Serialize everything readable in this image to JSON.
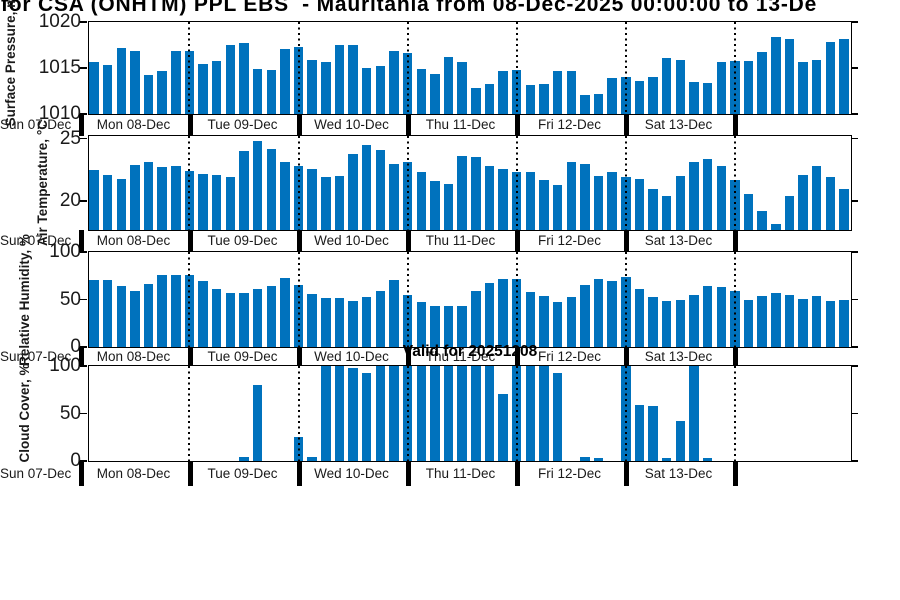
{
  "title": "for CSA (ONHTM) PPL EBS  - Mauritania from 08-Dec-2025 00:00:00 to 13-De",
  "annotation": "Valid for 20251208",
  "x_axis": {
    "left_label": "Sun 07-Dec",
    "day_labels": [
      "Mon 08-Dec",
      "Tue 09-Dec",
      "Wed 10-Dec",
      "Thu 11-Dec",
      "Fri 12-Dec",
      "Sat 13-Dec"
    ]
  },
  "colors": {
    "bar": "#0072BD",
    "axis": "#000000",
    "text": "#1a1a1a"
  },
  "chart_data": [
    {
      "type": "bar",
      "ylabel": "Surface Pressure, mb",
      "ylim": [
        1010,
        1020
      ],
      "yticks": [
        1010,
        1015,
        1020
      ],
      "x_start": "08-Dec 03:00",
      "x_step_hours": 3,
      "values": [
        1015.6,
        1015.3,
        1017.2,
        1016.8,
        1014.2,
        1014.7,
        1016.8,
        1016.9,
        1015.4,
        1015.8,
        1017.5,
        1017.7,
        1014.9,
        1014.8,
        1017.1,
        1017.3,
        1015.9,
        1015.7,
        1017.5,
        1017.5,
        1015.0,
        1015.2,
        1016.9,
        1016.6,
        1014.9,
        1014.3,
        1016.2,
        1015.6,
        1012.8,
        1013.3,
        1014.7,
        1014.8,
        1013.2,
        1013.3,
        1014.7,
        1014.7,
        1012.1,
        1012.2,
        1013.9,
        1014.0,
        1013.6,
        1014.0,
        1016.1,
        1015.9,
        1013.5,
        1013.4,
        1015.7,
        1015.8,
        1015.8,
        1016.7,
        1018.4,
        1018.2,
        1015.7,
        1015.9,
        1017.8,
        1018.1
      ]
    },
    {
      "type": "bar",
      "ylabel": "Air Temperature, °C",
      "ylim": [
        17.7,
        25.2
      ],
      "yticks": [
        20,
        25
      ],
      "x_start": "08-Dec 03:00",
      "x_step_hours": 3,
      "values": [
        22.5,
        22.1,
        21.8,
        22.9,
        23.1,
        22.7,
        22.8,
        22.4,
        22.2,
        22.1,
        21.9,
        24.0,
        24.8,
        24.2,
        23.1,
        22.8,
        22.6,
        21.9,
        22.0,
        23.8,
        24.5,
        24.1,
        23.0,
        23.1,
        22.3,
        21.6,
        21.4,
        23.6,
        23.5,
        22.8,
        22.6,
        22.3,
        22.3,
        21.7,
        21.3,
        23.1,
        23.0,
        22.0,
        22.3,
        21.9,
        21.8,
        21.0,
        20.4,
        22.0,
        23.1,
        23.4,
        22.8,
        21.7,
        20.6,
        19.2,
        18.2,
        20.4,
        22.1,
        22.8,
        21.9,
        21.0
      ]
    },
    {
      "type": "bar",
      "ylabel": "Relative Humidity, %",
      "ylim": [
        0,
        100
      ],
      "yticks": [
        0,
        50,
        100
      ],
      "x_start": "08-Dec 03:00",
      "x_step_hours": 3,
      "values": [
        71,
        71,
        64,
        59,
        66,
        76,
        76,
        76,
        70,
        61,
        57,
        57,
        61,
        64,
        73,
        65,
        56,
        52,
        52,
        48,
        53,
        59,
        71,
        55,
        47,
        43,
        43,
        43,
        59,
        67,
        72,
        72,
        58,
        54,
        47,
        53,
        65,
        72,
        70,
        74,
        61,
        53,
        48,
        50,
        55,
        64,
        63,
        59,
        49,
        54,
        57,
        55,
        51,
        54,
        48,
        50
      ]
    },
    {
      "type": "bar",
      "ylabel": "Cloud Cover, %",
      "ylim": [
        0,
        100
      ],
      "yticks": [
        0,
        50,
        100
      ],
      "x_start": "08-Dec 03:00",
      "x_step_hours": 3,
      "values": [
        0,
        0,
        0,
        0,
        0,
        0,
        0,
        0,
        0,
        0,
        0,
        4,
        80,
        0,
        0,
        25,
        4,
        100,
        100,
        98,
        93,
        100,
        100,
        100,
        100,
        100,
        100,
        100,
        100,
        100,
        71,
        100,
        100,
        100,
        93,
        0,
        4,
        3,
        0,
        100,
        59,
        58,
        3,
        42,
        100,
        3,
        0,
        0,
        0,
        0,
        0,
        0,
        0,
        0,
        0,
        0
      ]
    }
  ]
}
